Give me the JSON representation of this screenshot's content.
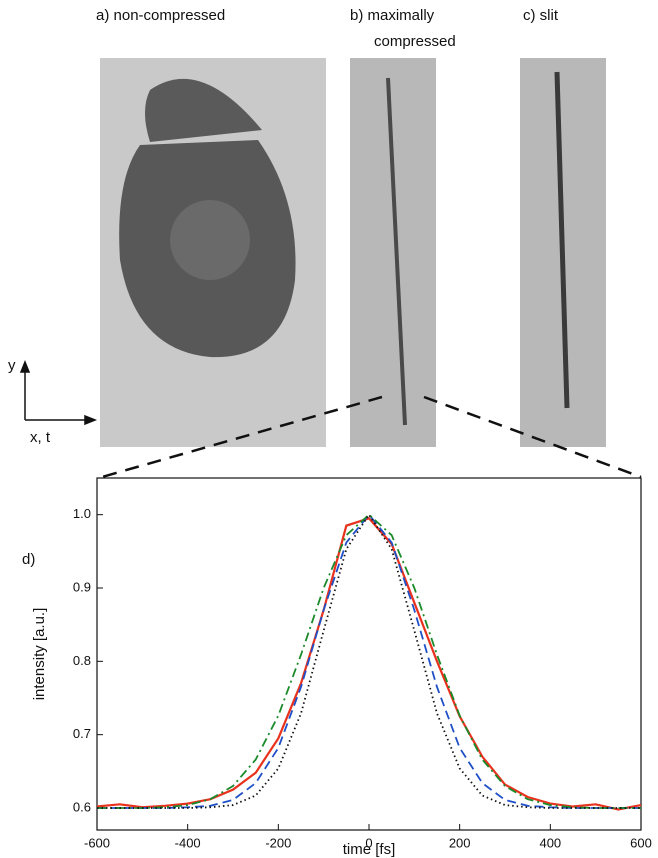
{
  "panels": [
    {
      "label": "a) non-compressed"
    },
    {
      "label": [
        "b) maximally",
        "compressed"
      ]
    },
    {
      "label": "c) slit"
    }
  ],
  "axes_sketch": {
    "vertical": "y",
    "horizontal": "x, t"
  },
  "chart_data": {
    "type": "line",
    "panel_label": "d)",
    "x_label": "time [fs]",
    "y_label": "intensity [a.u.]",
    "x": [
      -600,
      -550,
      -500,
      -450,
      -400,
      -350,
      -300,
      -250,
      -200,
      -150,
      -100,
      -50,
      0,
      50,
      100,
      150,
      200,
      250,
      300,
      350,
      400,
      450,
      500,
      550,
      600
    ],
    "series": [
      {
        "color": "#e8321e",
        "style": "solid",
        "values": [
          0.602,
          0.605,
          0.601,
          0.603,
          0.606,
          0.612,
          0.625,
          0.648,
          0.695,
          0.77,
          0.87,
          0.985,
          0.995,
          0.96,
          0.88,
          0.8,
          0.725,
          0.67,
          0.632,
          0.615,
          0.606,
          0.602,
          0.605,
          0.598,
          0.604
        ]
      },
      {
        "color": "#2050c8",
        "style": "dashed",
        "values": [
          0.6,
          0.6,
          0.6,
          0.6,
          0.601,
          0.603,
          0.611,
          0.634,
          0.682,
          0.765,
          0.87,
          0.962,
          1.0,
          0.962,
          0.87,
          0.765,
          0.682,
          0.634,
          0.611,
          0.603,
          0.601,
          0.6,
          0.6,
          0.6,
          0.6
        ]
      },
      {
        "color": "#1a8a2a",
        "style": "dashdot",
        "values": [
          0.6,
          0.6,
          0.6,
          0.601,
          0.604,
          0.612,
          0.63,
          0.666,
          0.726,
          0.809,
          0.9,
          0.972,
          1.0,
          0.972,
          0.9,
          0.809,
          0.726,
          0.666,
          0.63,
          0.612,
          0.604,
          0.601,
          0.6,
          0.6,
          0.6
        ]
      },
      {
        "color": "#111111",
        "style": "dotted",
        "values": [
          0.6,
          0.6,
          0.6,
          0.6,
          0.6,
          0.601,
          0.604,
          0.617,
          0.654,
          0.729,
          0.842,
          0.953,
          1.0,
          0.953,
          0.842,
          0.729,
          0.654,
          0.617,
          0.604,
          0.601,
          0.6,
          0.6,
          0.6,
          0.6,
          0.6
        ]
      }
    ],
    "xlim": [
      -600,
      600
    ],
    "ylim": [
      0.57,
      1.05
    ],
    "xticks": [
      -600,
      -400,
      -200,
      0,
      200,
      400,
      600
    ],
    "yticks": [
      0.6,
      0.7,
      0.8,
      0.9,
      {
        "value": 1,
        "label": "1.0"
      }
    ]
  }
}
